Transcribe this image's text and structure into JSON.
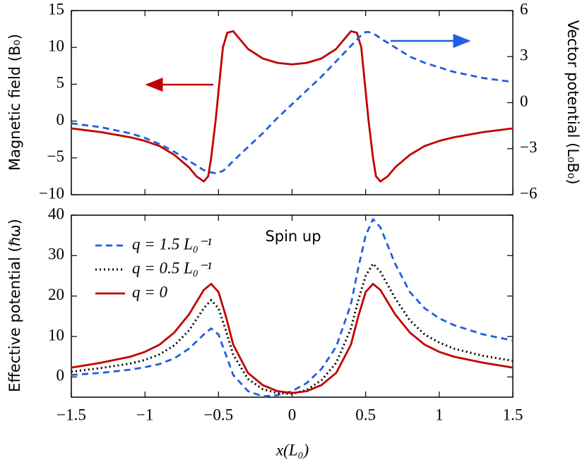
{
  "chart_data": [
    {
      "type": "line",
      "y_label": "Magnetic field (B₀)",
      "y2_label": "Vector potential (L₀B₀)",
      "x": [
        -1.5,
        -1.3,
        -1.1,
        -1.0,
        -0.9,
        -0.8,
        -0.7,
        -0.65,
        -0.6,
        -0.57,
        -0.55,
        -0.52,
        -0.5,
        -0.47,
        -0.44,
        -0.4,
        -0.35,
        -0.3,
        -0.2,
        -0.1,
        0,
        0.1,
        0.2,
        0.3,
        0.35,
        0.4,
        0.44,
        0.47,
        0.5,
        0.52,
        0.55,
        0.57,
        0.6,
        0.65,
        0.7,
        0.8,
        0.9,
        1.0,
        1.1,
        1.3,
        1.5
      ],
      "series": [
        {
          "color": "#c00000",
          "dash": "solid",
          "values": [
            -1.0,
            -1.5,
            -2.2,
            -2.7,
            -3.4,
            -4.6,
            -6.3,
            -7.5,
            -8.2,
            -7.5,
            -5,
            0,
            4,
            10,
            12,
            12.2,
            11,
            9.8,
            8.5,
            7.9,
            7.7,
            7.9,
            8.5,
            9.8,
            11,
            12.2,
            12,
            10,
            4,
            0,
            -5,
            -7.5,
            -8.2,
            -7.5,
            -6.3,
            -4.6,
            -3.4,
            -2.7,
            -2.2,
            -1.5,
            -1.0
          ]
        },
        {
          "color": "#1f5fe0",
          "dash": "dashed",
          "axis": "y2",
          "values": [
            -1.35,
            -1.6,
            -2.0,
            -2.3,
            -2.7,
            -3.2,
            -3.8,
            -4.1,
            -4.4,
            -4.5,
            -4.55,
            -4.6,
            -4.55,
            -4.45,
            -4.2,
            -3.8,
            -3.35,
            -2.9,
            -2.0,
            -1.0,
            -0.1,
            0.8,
            1.7,
            2.7,
            3.2,
            3.7,
            4.1,
            4.4,
            4.6,
            4.6,
            4.5,
            4.4,
            4.2,
            3.9,
            3.6,
            3.0,
            2.6,
            2.3,
            2.0,
            1.6,
            1.35
          ]
        }
      ],
      "xlim": [
        -1.5,
        1.5
      ],
      "xticks": [
        -1.5,
        -1,
        -0.5,
        0,
        0.5,
        1,
        1.5
      ],
      "ylim": [
        -10,
        15
      ],
      "yticks": [
        {
          "value": -10,
          "label": "−10"
        },
        {
          "value": -5,
          "label": "−5"
        },
        0,
        5,
        10,
        15
      ],
      "y2lim": [
        -6,
        6
      ],
      "y2ticks": [
        {
          "value": -6,
          "label": "−6"
        },
        {
          "value": -3,
          "label": "−3"
        },
        0,
        3,
        6
      ]
    },
    {
      "type": "line",
      "x_label": "x(L₀)",
      "y_label": "Effective potential (ℏω)",
      "annotation": "Spin up",
      "legend": "upper left",
      "x": [
        -1.5,
        -1.3,
        -1.1,
        -1.0,
        -0.9,
        -0.8,
        -0.7,
        -0.6,
        -0.55,
        -0.5,
        -0.45,
        -0.4,
        -0.3,
        -0.2,
        -0.1,
        0,
        0.1,
        0.2,
        0.3,
        0.4,
        0.45,
        0.5,
        0.55,
        0.6,
        0.7,
        0.8,
        0.9,
        1.0,
        1.1,
        1.3,
        1.5
      ],
      "series": [
        {
          "name": "q = 1.5 L₀⁻¹",
          "color": "#1f5fe0",
          "dash": "dashed",
          "values": [
            0.5,
            1,
            1.8,
            2.4,
            3.2,
            4.6,
            7,
            10.5,
            12,
            10.5,
            5.5,
            0.5,
            -3.5,
            -4.8,
            -4.5,
            -3.5,
            -1.5,
            2,
            7.5,
            18,
            27,
            35,
            39,
            37,
            28,
            21,
            17,
            14.5,
            12.8,
            10.5,
            9
          ]
        },
        {
          "name": "q = 0.5 L₀⁻¹",
          "color": "#000000",
          "dash": "dotted",
          "values": [
            1.3,
            2.2,
            3.3,
            4.2,
            5.6,
            7.8,
            11.5,
            17,
            19,
            17,
            11.5,
            5.5,
            -0.5,
            -3,
            -4,
            -4.2,
            -3.2,
            -0.8,
            3.5,
            12,
            19,
            25,
            28,
            26,
            19.5,
            14,
            10.5,
            8.5,
            7,
            5.2,
            4
          ]
        },
        {
          "name": "q = 0",
          "color": "#c00000",
          "dash": "solid",
          "values": [
            2.3,
            3.5,
            5,
            6.2,
            8,
            11,
            15.5,
            21.5,
            23,
            21,
            15,
            8,
            1,
            -2,
            -3.5,
            -4,
            -3.5,
            -2,
            1,
            8,
            15,
            21,
            23,
            21.5,
            15.5,
            11,
            8,
            6.2,
            5,
            3.5,
            2.3
          ]
        }
      ],
      "xlim": [
        -1.5,
        1.5
      ],
      "xticks": [
        {
          "value": -1.5,
          "label": "−1.5"
        },
        {
          "value": -1,
          "label": "−1"
        },
        {
          "value": -0.5,
          "label": "−0.5"
        },
        0,
        0.5,
        1,
        1.5
      ],
      "ylim": [
        -5,
        40
      ],
      "yticks": [
        0,
        10,
        20,
        30,
        40
      ]
    }
  ]
}
